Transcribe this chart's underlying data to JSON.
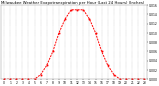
{
  "title": "Milwaukee Weather Evapotranspiration per Hour (Last 24 Hours) (Inches)",
  "hours": [
    0,
    1,
    2,
    3,
    4,
    5,
    6,
    7,
    8,
    9,
    10,
    11,
    12,
    13,
    14,
    15,
    16,
    17,
    18,
    19,
    20,
    21,
    22,
    23
  ],
  "values": [
    0,
    0,
    0,
    0,
    0,
    0,
    0.001,
    0.003,
    0.006,
    0.01,
    0.013,
    0.015,
    0.015,
    0.015,
    0.013,
    0.01,
    0.006,
    0.003,
    0.001,
    0,
    0,
    0,
    0,
    0
  ],
  "line_color": "#FF0000",
  "bg_color": "#FFFFFF",
  "grid_color": "#999999",
  "ylim": [
    0,
    0.016
  ],
  "yticks": [
    0,
    0.002,
    0.004,
    0.006,
    0.008,
    0.01,
    0.012,
    0.014,
    0.016
  ],
  "title_fontsize": 2.8,
  "tick_fontsize": 2.2,
  "linewidth": 0.7,
  "markersize": 0.9
}
